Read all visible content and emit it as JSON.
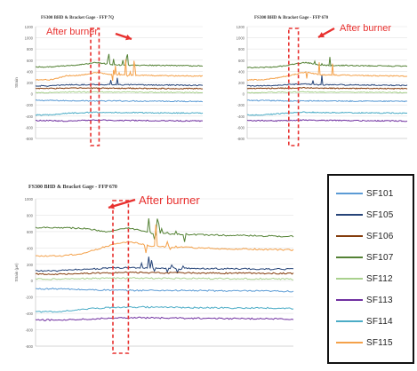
{
  "series_colors": {
    "SF101": "#5b9bd5",
    "SF105": "#264478",
    "SF106": "#843c0c",
    "SF107": "#548235",
    "SF112": "#a9d18e",
    "SF113": "#7030a0",
    "SF114": "#4bacc6",
    "SF115": "#f4a14a"
  },
  "annotation_color": "#e8312f",
  "legend": {
    "items": [
      "SF101",
      "SF105",
      "SF106",
      "SF107",
      "SF112",
      "SF113",
      "SF114",
      "SF115"
    ]
  },
  "chart_data": [
    {
      "type": "line",
      "title": "FS300 BHD & Bracket Gage - FFP   7Q",
      "annotation": "After burner",
      "ylim": [
        -800,
        1200
      ],
      "yticks": [
        1200,
        1000,
        800,
        600,
        400,
        200,
        0,
        -200,
        -400,
        -600,
        -800
      ],
      "ylabel": "Strain",
      "grid": true,
      "burner_range": [
        0.33,
        0.38
      ],
      "series": [
        {
          "name": "SF101",
          "values": [
            -120,
            -120,
            -125,
            -125,
            -130,
            -128,
            -130,
            -132,
            -130,
            -135,
            -135,
            -138
          ]
        },
        {
          "name": "SF105",
          "values": [
            140,
            140,
            160,
            160,
            165,
            160,
            160,
            158,
            155,
            155,
            150,
            150
          ]
        },
        {
          "name": "SF106",
          "values": [
            95,
            95,
            100,
            100,
            100,
            98,
            98,
            95,
            95,
            92,
            92,
            90
          ]
        },
        {
          "name": "SF107",
          "values": [
            480,
            480,
            500,
            520,
            560,
            520,
            510,
            510,
            505,
            505,
            500,
            500
          ]
        },
        {
          "name": "SF112",
          "values": [
            20,
            20,
            30,
            30,
            30,
            28,
            28,
            26,
            25,
            25,
            22,
            20
          ]
        },
        {
          "name": "SF113",
          "values": [
            -480,
            -480,
            -490,
            -480,
            -470,
            -475,
            -478,
            -480,
            -482,
            -485,
            -485,
            -488
          ]
        },
        {
          "name": "SF114",
          "values": [
            -380,
            -380,
            -350,
            -340,
            -330,
            -335,
            -338,
            -340,
            -342,
            -345,
            -345,
            -348
          ]
        },
        {
          "name": "SF115",
          "values": [
            250,
            250,
            320,
            330,
            380,
            340,
            335,
            330,
            325,
            320,
            318,
            315
          ]
        }
      ]
    },
    {
      "type": "line",
      "title": "FS300 BHD & Bracket Gage - FFP   670",
      "annotation": "After burner",
      "ylim": [
        -800,
        1200
      ],
      "yticks": [
        1200,
        1000,
        800,
        600,
        400,
        200,
        0,
        -200,
        -400,
        -600,
        -800
      ],
      "ylabel": "",
      "grid": true,
      "burner_range": [
        0.26,
        0.32
      ],
      "series": [
        {
          "name": "SF101",
          "values": [
            -120,
            -122,
            -125,
            -130,
            -130,
            -128,
            -130,
            -132,
            -130,
            -135,
            -135,
            -138
          ]
        },
        {
          "name": "SF105",
          "values": [
            140,
            140,
            150,
            165,
            170,
            160,
            160,
            158,
            155,
            155,
            150,
            150
          ]
        },
        {
          "name": "SF106",
          "values": [
            95,
            95,
            100,
            100,
            105,
            98,
            98,
            95,
            95,
            92,
            92,
            90
          ]
        },
        {
          "name": "SF107",
          "values": [
            470,
            470,
            480,
            520,
            560,
            510,
            505,
            505,
            500,
            500,
            495,
            495
          ]
        },
        {
          "name": "SF112",
          "values": [
            20,
            20,
            25,
            30,
            32,
            28,
            28,
            26,
            25,
            25,
            22,
            20
          ]
        },
        {
          "name": "SF113",
          "values": [
            -480,
            -480,
            -485,
            -480,
            -470,
            -475,
            -478,
            -480,
            -482,
            -485,
            -485,
            -488
          ]
        },
        {
          "name": "SF114",
          "values": [
            -380,
            -380,
            -360,
            -340,
            -330,
            -335,
            -338,
            -340,
            -342,
            -345,
            -345,
            -348
          ]
        },
        {
          "name": "SF115",
          "values": [
            250,
            250,
            280,
            330,
            390,
            340,
            335,
            330,
            325,
            320,
            318,
            315
          ]
        }
      ]
    },
    {
      "type": "line",
      "title": "FS300 BHD & Bracket Gage - FFP   670",
      "annotation": "After burner",
      "ylim": [
        -800,
        1000
      ],
      "yticks": [
        1000,
        800,
        600,
        400,
        200,
        0,
        -200,
        -400,
        -600,
        -800
      ],
      "ylabel": "Strain (μe)",
      "grid": true,
      "burner_range": [
        0.3,
        0.36
      ],
      "series": [
        {
          "name": "SF101",
          "values": [
            -100,
            -100,
            -110,
            -115,
            -120,
            -118,
            -120,
            -122,
            -124,
            -126,
            -128,
            -130
          ]
        },
        {
          "name": "SF105",
          "values": [
            120,
            120,
            140,
            150,
            160,
            150,
            150,
            148,
            145,
            145,
            140,
            140
          ]
        },
        {
          "name": "SF106",
          "values": [
            80,
            80,
            90,
            95,
            100,
            95,
            95,
            92,
            92,
            90,
            90,
            88
          ]
        },
        {
          "name": "SF107",
          "values": [
            650,
            650,
            640,
            600,
            640,
            580,
            570,
            560,
            555,
            550,
            545,
            540
          ]
        },
        {
          "name": "SF112",
          "values": [
            20,
            20,
            25,
            30,
            30,
            28,
            28,
            26,
            25,
            25,
            22,
            20
          ]
        },
        {
          "name": "SF113",
          "values": [
            -480,
            -480,
            -470,
            -460,
            -450,
            -455,
            -458,
            -460,
            -462,
            -465,
            -465,
            -470
          ]
        },
        {
          "name": "SF114",
          "values": [
            -380,
            -380,
            -350,
            -330,
            -320,
            -325,
            -328,
            -330,
            -332,
            -335,
            -335,
            -340
          ]
        },
        {
          "name": "SF115",
          "values": [
            300,
            300,
            330,
            420,
            480,
            420,
            410,
            400,
            390,
            385,
            380,
            375
          ]
        }
      ]
    }
  ]
}
